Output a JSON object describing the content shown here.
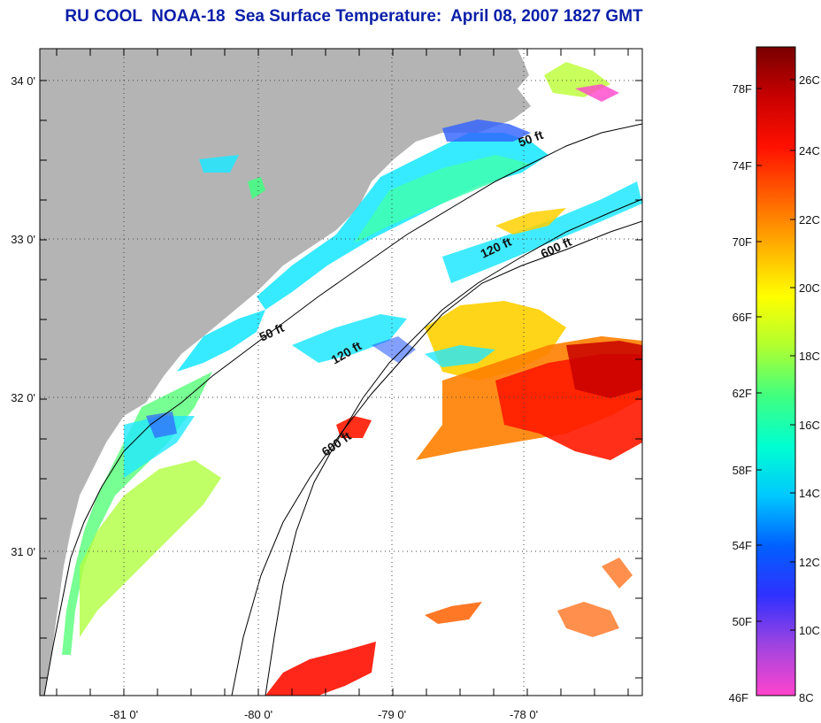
{
  "title": "RU COOL  NOAA-18  Sea Surface Temperature:  April 08, 2007 1827 GMT",
  "map": {
    "lon_ticks": [
      "-81 0'",
      "-80 0'",
      "-79 0'",
      "-78 0'"
    ],
    "lat_ticks": [
      "34 0'",
      "33 0'",
      "32 0'",
      "31 0'"
    ],
    "isobaths": [
      {
        "label": "50 ft"
      },
      {
        "label": "50 ft"
      },
      {
        "label": "120 ft"
      },
      {
        "label": "120 ft"
      },
      {
        "label": "600 ft"
      },
      {
        "label": "600 ft"
      }
    ],
    "colors": {
      "land": "#b4b4b4",
      "ocean_no_data": "#ffffff"
    }
  },
  "colorbar": {
    "fahrenheit_labels": [
      "78F",
      "74F",
      "70F",
      "66F",
      "62F",
      "58F",
      "54F",
      "50F",
      "46F"
    ],
    "celsius_labels": [
      "26C",
      "24C",
      "22C",
      "20C",
      "18C",
      "16C",
      "14C",
      "12C",
      "10C",
      "8C"
    ],
    "stops": [
      "#ff44cc",
      "#a044e0",
      "#3030ff",
      "#0060ff",
      "#00c8ff",
      "#00ffd0",
      "#40ff80",
      "#b0ff30",
      "#ffff00",
      "#ffb000",
      "#ff6000",
      "#ff1000",
      "#c80000",
      "#780000"
    ]
  }
}
